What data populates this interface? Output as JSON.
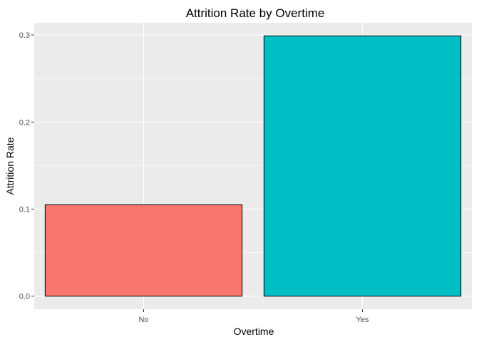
{
  "chart_data": {
    "type": "bar",
    "title": "Attrition Rate by Overtime",
    "xlabel": "Overtime",
    "ylabel": "Attrition Rate",
    "categories": [
      "No",
      "Yes"
    ],
    "values": [
      0.105,
      0.299
    ],
    "colors": [
      "#F8766D",
      "#00BFC4"
    ],
    "ylim": [
      -0.015,
      0.314
    ],
    "yticks": [
      0.0,
      0.1,
      0.2,
      0.3
    ],
    "ytick_labels": [
      "0.0",
      "0.1",
      "0.2",
      "0.3"
    ],
    "grid": true,
    "legend": "none"
  }
}
